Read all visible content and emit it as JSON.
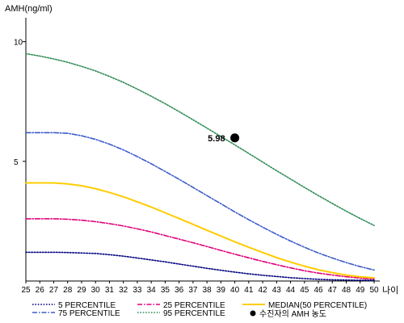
{
  "chart_data": {
    "type": "line",
    "ylabel": "AMH(ng/ml)",
    "xlabel": "나이",
    "x": [
      25,
      26,
      27,
      28,
      29,
      30,
      31,
      32,
      33,
      34,
      35,
      36,
      37,
      38,
      39,
      40,
      41,
      42,
      43,
      44,
      45,
      46,
      47,
      48,
      49,
      50
    ],
    "xlim": [
      25,
      50
    ],
    "ylim": [
      0,
      11
    ],
    "yticks": [
      5,
      10
    ],
    "grid": false,
    "legend_position": "bottom",
    "series": [
      {
        "name": "5 PERCENTILE",
        "color": "#00007f",
        "dash": "dotted",
        "values": [
          1.2,
          1.2,
          1.2,
          1.19,
          1.17,
          1.15,
          1.1,
          1.04,
          0.96,
          0.88,
          0.8,
          0.71,
          0.62,
          0.53,
          0.45,
          0.37,
          0.3,
          0.24,
          0.19,
          0.14,
          0.1,
          0.07,
          0.05,
          0.04,
          0.03,
          0.03
        ]
      },
      {
        "name": "25 PERCENTILE",
        "color": "#e0007a",
        "dash": "dashdot",
        "values": [
          2.6,
          2.6,
          2.6,
          2.58,
          2.54,
          2.48,
          2.4,
          2.3,
          2.18,
          2.05,
          1.9,
          1.75,
          1.6,
          1.44,
          1.28,
          1.12,
          0.97,
          0.82,
          0.68,
          0.55,
          0.43,
          0.33,
          0.25,
          0.18,
          0.12,
          0.08
        ]
      },
      {
        "name": "MEDIAN(50 PERCENTILE)",
        "color": "#ffcc00",
        "dash": "solid",
        "values": [
          4.1,
          4.1,
          4.1,
          4.06,
          3.98,
          3.86,
          3.7,
          3.52,
          3.31,
          3.09,
          2.85,
          2.61,
          2.37,
          2.12,
          1.88,
          1.64,
          1.41,
          1.19,
          0.98,
          0.79,
          0.62,
          0.47,
          0.35,
          0.25,
          0.18,
          0.13
        ]
      },
      {
        "name": "75 PERCENTILE",
        "color": "#3b5bc9",
        "dash": "dashdot",
        "values": [
          6.2,
          6.2,
          6.2,
          6.17,
          6.07,
          5.92,
          5.72,
          5.48,
          5.2,
          4.9,
          4.58,
          4.25,
          3.91,
          3.57,
          3.23,
          2.89,
          2.56,
          2.25,
          1.95,
          1.67,
          1.41,
          1.17,
          0.96,
          0.77,
          0.6,
          0.46
        ]
      },
      {
        "name": "95 PERCENTILE",
        "color": "#2e8b57",
        "dash": "dotted",
        "values": [
          9.5,
          9.4,
          9.28,
          9.14,
          8.97,
          8.78,
          8.55,
          8.3,
          8.02,
          7.72,
          7.41,
          7.08,
          6.74,
          6.39,
          6.04,
          5.69,
          5.33,
          4.97,
          4.61,
          4.26,
          3.91,
          3.57,
          3.24,
          2.92,
          2.61,
          2.32
        ]
      }
    ],
    "marker": {
      "name": "수진자의 AMH 농도",
      "x": 40,
      "y": 5.98,
      "label": "5.98",
      "color": "#000000"
    }
  }
}
